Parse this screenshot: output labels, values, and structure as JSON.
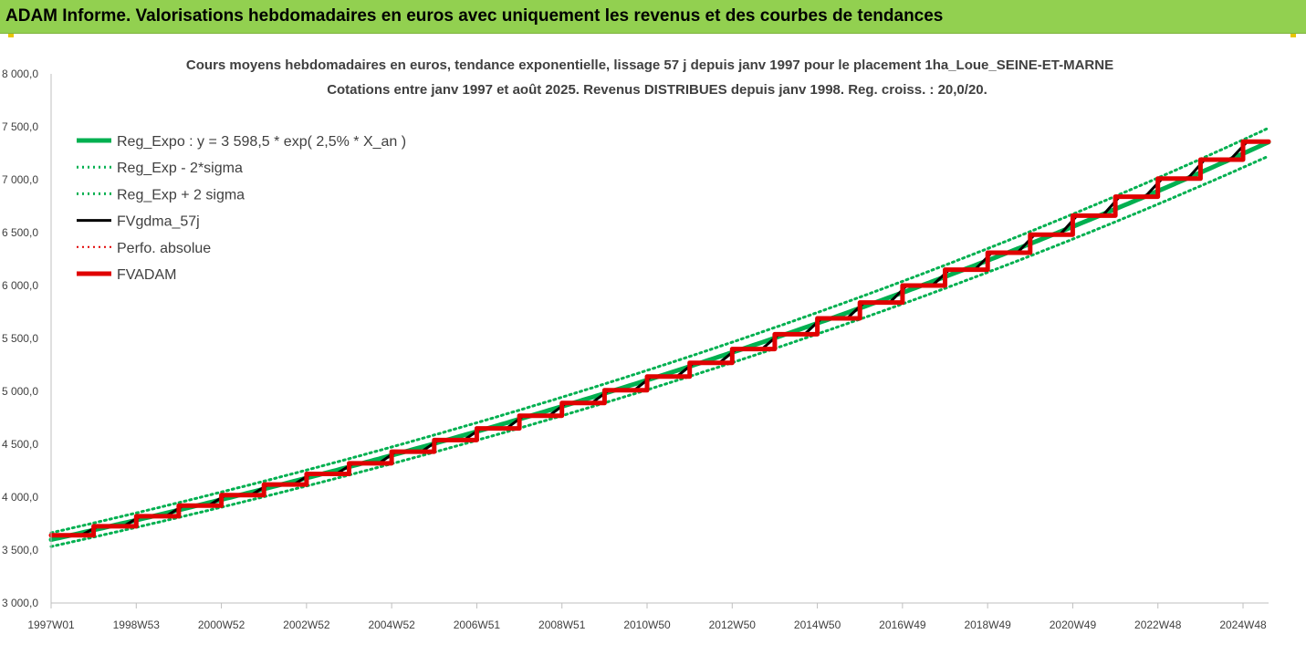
{
  "banner": {
    "text": "ADAM Informe. Valorisations hebdomadaires en euros avec uniquement les revenus et des courbes de tendances",
    "color": "#92d050"
  },
  "chart_data": {
    "type": "line",
    "title": "Cours moyens hebdomadaires en euros, tendance exponentielle, lissage 57 j depuis janv 1997  pour le placement 1ha_Loue_SEINE-ET-MARNE",
    "subtitle": "Cotations entre janv 1997 et août 2025. Revenus DISTRIBUES depuis janv 1998. Reg. croiss. : 20,0/20.",
    "ylim": [
      3000,
      8000
    ],
    "y_ticks": [
      "3 000,0",
      "3 500,0",
      "4 000,0",
      "4 500,0",
      "5 000,0",
      "5 500,0",
      "6 000,0",
      "6 500,0",
      "7 000,0",
      "7 500,0",
      "8 000,0"
    ],
    "x_range_years": [
      1997.0,
      2025.6
    ],
    "x_ticks": [
      {
        "label": "1997W01",
        "x": 1997.0
      },
      {
        "label": "1998W53",
        "x": 1999.0
      },
      {
        "label": "2000W52",
        "x": 2001.0
      },
      {
        "label": "2002W52",
        "x": 2003.0
      },
      {
        "label": "2004W52",
        "x": 2005.0
      },
      {
        "label": "2006W51",
        "x": 2007.0
      },
      {
        "label": "2008W51",
        "x": 2009.0
      },
      {
        "label": "2010W50",
        "x": 2011.0
      },
      {
        "label": "2012W50",
        "x": 2013.0
      },
      {
        "label": "2014W50",
        "x": 2015.0
      },
      {
        "label": "2016W49",
        "x": 2017.0
      },
      {
        "label": "2018W49",
        "x": 2019.0
      },
      {
        "label": "2020W49",
        "x": 2021.0
      },
      {
        "label": "2022W48",
        "x": 2023.0
      },
      {
        "label": "2024W48",
        "x": 2025.0
      }
    ],
    "grid": false,
    "legend_position": "top-left",
    "regression": {
      "a": 3598.5,
      "rate": 0.025,
      "sigma_factor": 0.018
    },
    "step_levels": [
      {
        "start": 1997.0,
        "end": 1998.0,
        "value": 3640
      },
      {
        "start": 1998.0,
        "end": 1999.0,
        "value": 3725
      },
      {
        "start": 1999.0,
        "end": 2000.0,
        "value": 3820
      },
      {
        "start": 2000.0,
        "end": 2001.0,
        "value": 3920
      },
      {
        "start": 2001.0,
        "end": 2002.0,
        "value": 4020
      },
      {
        "start": 2002.0,
        "end": 2003.0,
        "value": 4120
      },
      {
        "start": 2003.0,
        "end": 2004.0,
        "value": 4220
      },
      {
        "start": 2004.0,
        "end": 2005.0,
        "value": 4320
      },
      {
        "start": 2005.0,
        "end": 2006.0,
        "value": 4430
      },
      {
        "start": 2006.0,
        "end": 2007.0,
        "value": 4540
      },
      {
        "start": 2007.0,
        "end": 2008.0,
        "value": 4650
      },
      {
        "start": 2008.0,
        "end": 2009.0,
        "value": 4770
      },
      {
        "start": 2009.0,
        "end": 2010.0,
        "value": 4890
      },
      {
        "start": 2010.0,
        "end": 2011.0,
        "value": 5010
      },
      {
        "start": 2011.0,
        "end": 2012.0,
        "value": 5140
      },
      {
        "start": 2012.0,
        "end": 2013.0,
        "value": 5270
      },
      {
        "start": 2013.0,
        "end": 2014.0,
        "value": 5400
      },
      {
        "start": 2014.0,
        "end": 2015.0,
        "value": 5540
      },
      {
        "start": 2015.0,
        "end": 2016.0,
        "value": 5690
      },
      {
        "start": 2016.0,
        "end": 2017.0,
        "value": 5840
      },
      {
        "start": 2017.0,
        "end": 2018.0,
        "value": 6000
      },
      {
        "start": 2018.0,
        "end": 2019.0,
        "value": 6150
      },
      {
        "start": 2019.0,
        "end": 2020.0,
        "value": 6310
      },
      {
        "start": 2020.0,
        "end": 2021.0,
        "value": 6480
      },
      {
        "start": 2021.0,
        "end": 2022.0,
        "value": 6660
      },
      {
        "start": 2022.0,
        "end": 2023.0,
        "value": 6840
      },
      {
        "start": 2023.0,
        "end": 2024.0,
        "value": 7010
      },
      {
        "start": 2024.0,
        "end": 2025.0,
        "value": 7190
      },
      {
        "start": 2025.0,
        "end": 2025.6,
        "value": 7360
      }
    ],
    "series": [
      {
        "name": "Reg_Expo : y = 3 598,5 * exp( 2,5% *  X_an )",
        "color": "#00b050",
        "style": "solid",
        "width": 5
      },
      {
        "name": "Reg_Exp - 2*sigma",
        "color": "#00b050",
        "style": "dotted",
        "width": 3
      },
      {
        "name": "Reg_Exp + 2 sigma",
        "color": "#00b050",
        "style": "dotted",
        "width": 3
      },
      {
        "name": "FVgdma_57j",
        "color": "#000000",
        "style": "solid",
        "width": 3
      },
      {
        "name": "Perfo. absolue",
        "color": "#e00000",
        "style": "dotted",
        "width": 2
      },
      {
        "name": "FVADAM",
        "color": "#e00000",
        "style": "solid",
        "width": 5
      }
    ]
  }
}
